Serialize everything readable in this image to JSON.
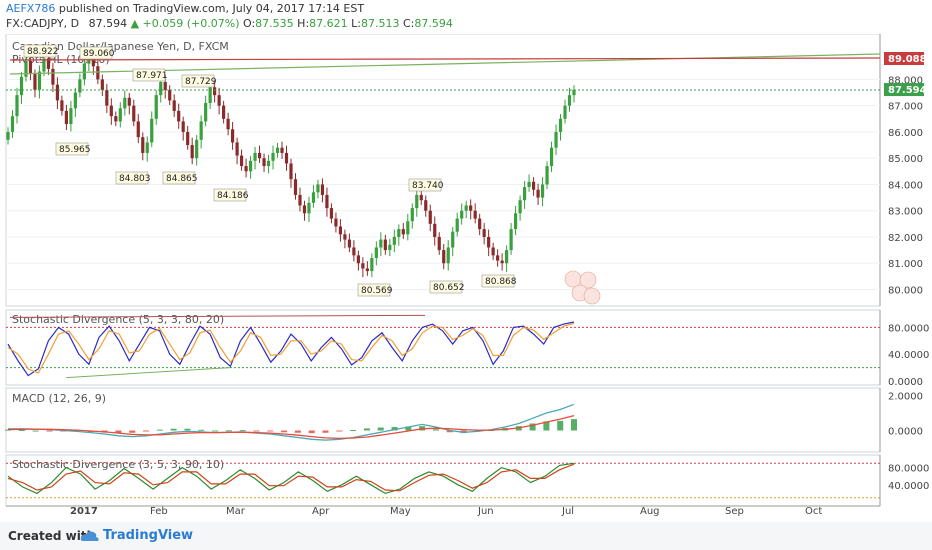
{
  "header": {
    "author": "AEFX786",
    "published_text": "published on TradingView.com, July 04, 2017 17:14 EST",
    "symbol": "FX:CADJPY, D",
    "last": "87.594",
    "change": "+0.059 (+0.07%)",
    "o_label": "O:",
    "o_value": "87.535",
    "h_label": "H:",
    "h_value": "87.621",
    "l_label": "L:",
    "l_value": "87.513",
    "c_label": "C:",
    "c_value": "87.594"
  },
  "footer": {
    "created_with": "Created with",
    "brand": "TradingView"
  },
  "colors": {
    "up": "#38a03d",
    "down": "#8b2a2a",
    "trend_green": "#79b35f",
    "trend_red": "#c83c3c",
    "price_line": "#3aa04a",
    "stoch_k": "#2a2acb",
    "stoch_d": "#f0a030",
    "macd_line": "#4aa7b4",
    "signal_line": "#e74c3c",
    "hist_pos": "#3aa04a",
    "hist_neg": "#e74c3c",
    "stoch2_k": "#2e8a2e",
    "stoch2_d": "#d0421a"
  },
  "chart_data": [
    {
      "type": "candlestick",
      "title": "Canadian Dollar/Japanese Yen, D, FXCM",
      "indicator_label": "Pivots HL (10, 10)",
      "y_ticks": [
        "88.000",
        "87.000",
        "86.000",
        "85.000",
        "84.000",
        "83.000",
        "82.000",
        "81.000",
        "80.000"
      ],
      "ylim": [
        79.6,
        89.5
      ],
      "x_ticks": [
        "2017",
        "Feb",
        "Mar",
        "Apr",
        "May",
        "Jun",
        "Jul",
        "Aug",
        "Sep",
        "Oct"
      ],
      "current_price": "87.594",
      "resistance_price": "89.088",
      "pivot_highs": [
        "88.922",
        "89.060",
        "87.971",
        "87.729",
        "83.740"
      ],
      "pivot_lows": [
        "85.965",
        "84.803",
        "84.865",
        "84.186",
        "80.569",
        "80.652",
        "80.868"
      ],
      "closes": [
        86.0,
        86.6,
        87.4,
        88.1,
        88.7,
        88.2,
        87.6,
        88.3,
        88.8,
        88.4,
        87.8,
        87.2,
        86.8,
        86.3,
        86.9,
        87.5,
        88.0,
        88.6,
        89.0,
        88.5,
        88.0,
        87.6,
        87.0,
        86.6,
        86.4,
        86.9,
        87.3,
        87.0,
        86.4,
        85.8,
        85.2,
        85.6,
        86.5,
        87.4,
        87.9,
        87.6,
        87.2,
        86.8,
        86.4,
        86.0,
        85.5,
        85.0,
        85.7,
        86.4,
        87.1,
        87.7,
        87.4,
        87.0,
        86.5,
        86.1,
        85.6,
        85.1,
        84.7,
        84.5,
        84.9,
        85.2,
        85.0,
        84.7,
        84.9,
        85.2,
        85.4,
        85.2,
        84.8,
        84.2,
        83.6,
        83.2,
        82.9,
        83.3,
        83.7,
        84.0,
        83.6,
        83.1,
        82.7,
        82.4,
        82.1,
        81.9,
        81.6,
        81.3,
        81.0,
        80.8,
        80.7,
        81.2,
        81.6,
        81.9,
        81.5,
        81.7,
        82.0,
        82.3,
        82.1,
        82.6,
        83.1,
        83.6,
        83.4,
        83.0,
        82.5,
        82.0,
        81.5,
        81.0,
        81.6,
        82.2,
        82.7,
        83.0,
        83.2,
        83.0,
        82.7,
        82.3,
        82.0,
        81.6,
        81.3,
        81.1,
        81.0,
        81.5,
        82.3,
        82.9,
        83.4,
        83.9,
        84.1,
        83.8,
        83.5,
        84.0,
        84.7,
        85.4,
        86.0,
        86.5,
        87.0,
        87.4,
        87.6
      ]
    },
    {
      "type": "line",
      "title": "Stochastic Divergence (5, 3, 3, 80, 20)",
      "y_ticks": [
        "80.0000",
        "40.0000",
        "0.0000"
      ],
      "ylim": [
        0,
        100
      ],
      "series": [
        {
          "values": [
            55,
            30,
            8,
            18,
            60,
            80,
            70,
            40,
            25,
            65,
            82,
            60,
            30,
            55,
            80,
            75,
            40,
            25,
            55,
            82,
            70,
            35,
            22,
            60,
            80,
            55,
            28,
            45,
            70,
            55,
            30,
            50,
            65,
            48,
            24,
            35,
            60,
            72,
            50,
            30,
            60,
            80,
            85,
            75,
            55,
            75,
            80,
            60,
            25,
            45,
            80,
            82,
            70,
            55,
            80,
            85,
            88
          ]
        },
        {
          "values": [
            50,
            40,
            18,
            12,
            40,
            70,
            75,
            55,
            32,
            48,
            75,
            70,
            42,
            45,
            70,
            78,
            55,
            32,
            42,
            72,
            76,
            50,
            28,
            45,
            72,
            65,
            38,
            40,
            60,
            60,
            40,
            45,
            60,
            55,
            32,
            30,
            50,
            68,
            60,
            38,
            48,
            72,
            82,
            80,
            62,
            68,
            78,
            68,
            38,
            38,
            68,
            80,
            76,
            62,
            72,
            82,
            86
          ]
        }
      ]
    },
    {
      "type": "line",
      "title": "MACD (12, 26, 9)",
      "y_ticks": [
        "2.0000",
        "0.0000"
      ],
      "ylim": [
        -1.0,
        2.2
      ],
      "series": [
        {
          "values": [
            0.1,
            0.1,
            0.08,
            0.05,
            0.0,
            -0.05,
            -0.12,
            -0.2,
            -0.3,
            -0.35,
            -0.3,
            -0.2,
            -0.1,
            -0.05,
            -0.08,
            -0.12,
            -0.1,
            -0.08,
            -0.15,
            -0.2,
            -0.3,
            -0.4,
            -0.5,
            -0.55,
            -0.5,
            -0.4,
            -0.25,
            -0.1,
            0.05,
            0.2,
            0.35,
            0.2,
            0.0,
            -0.1,
            -0.05,
            0.05,
            0.2,
            0.4,
            0.7,
            1.0,
            1.2,
            1.5
          ]
        },
        {
          "values": [
            0.05,
            0.07,
            0.08,
            0.07,
            0.05,
            0.02,
            -0.03,
            -0.08,
            -0.15,
            -0.22,
            -0.25,
            -0.25,
            -0.2,
            -0.15,
            -0.12,
            -0.12,
            -0.11,
            -0.1,
            -0.12,
            -0.15,
            -0.2,
            -0.27,
            -0.35,
            -0.42,
            -0.45,
            -0.43,
            -0.37,
            -0.27,
            -0.15,
            -0.03,
            0.1,
            0.13,
            0.1,
            0.05,
            0.02,
            0.02,
            0.06,
            0.15,
            0.3,
            0.48,
            0.65,
            0.85
          ]
        }
      ]
    },
    {
      "type": "line",
      "title": "Stochastic Divergence (3, 5, 3, 90, 10)",
      "y_ticks": [
        "80.0000",
        "40.0000"
      ],
      "ylim": [
        0,
        100
      ],
      "series": [
        {
          "values": [
            60,
            35,
            20,
            45,
            80,
            65,
            30,
            50,
            78,
            55,
            30,
            55,
            80,
            60,
            30,
            50,
            75,
            55,
            28,
            45,
            70,
            50,
            25,
            40,
            60,
            40,
            20,
            30,
            55,
            70,
            60,
            40,
            25,
            55,
            80,
            70,
            45,
            60,
            85,
            90
          ]
        },
        {
          "values": [
            55,
            45,
            28,
            35,
            65,
            72,
            45,
            42,
            68,
            65,
            40,
            45,
            70,
            70,
            42,
            42,
            65,
            65,
            38,
            38,
            60,
            58,
            35,
            35,
            52,
            48,
            28,
            26,
            45,
            62,
            65,
            50,
            32,
            45,
            70,
            75,
            55,
            55,
            75,
            88
          ]
        }
      ]
    }
  ]
}
